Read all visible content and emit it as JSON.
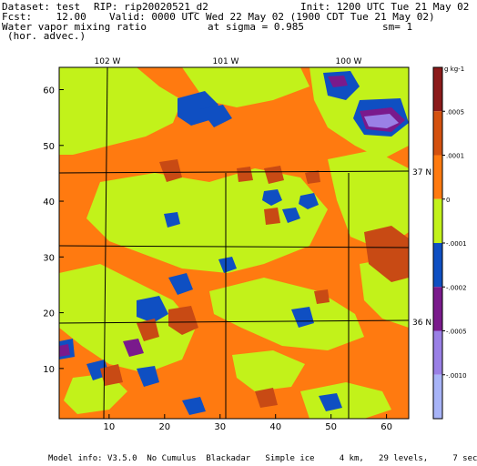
{
  "header": {
    "dataset": "Dataset: test",
    "rip": "RIP: rip20020521_d2",
    "init": "Init: 1200 UTC Tue 21 May 02",
    "fcst": "Fcst:    12.00",
    "valid": "Valid: 0000 UTC Wed 22 May 02 (1900 CDT Tue 21 May 02)",
    "field": "Water vapor mixing ratio",
    "sigma": "at sigma = 0.985",
    "sm": "sm= 1",
    "sub": "(hor. advec.)"
  },
  "footer": "Model info: V3.5.0  No Cumulus  Blackadar   Simple ice     4 km,   29 levels,     7 sec",
  "chart_data": {
    "type": "heatmap",
    "title": "Water vapor mixing ratio",
    "subtitle": "(hor. advec.)",
    "x_ticks": [
      10,
      20,
      30,
      40,
      50,
      60
    ],
    "y_ticks": [
      10,
      20,
      30,
      40,
      50,
      60
    ],
    "xlim": [
      1,
      64
    ],
    "ylim": [
      1,
      64
    ],
    "top_labels": [
      "102 W",
      "101 W",
      "100 W"
    ],
    "right_labels": [
      "37 N",
      "36 N"
    ],
    "colorbar": {
      "unit_label": "g kg-1",
      "labels": [
        ".0005",
        ".0001",
        "0",
        "-.0001",
        "-.0002",
        "-.0005",
        "-.0010"
      ],
      "colors": [
        "#8b1a1a",
        "#d4510f",
        "#ff7a10",
        "#c2f21a",
        "#0f4fc2",
        "#7a1a8c",
        "#9a80e6",
        "#a8b4f8"
      ]
    },
    "grid": true
  },
  "colors": {
    "strong_pos": "#8b1a1a",
    "pos": "#c84a14",
    "orange": "#ff7a10",
    "green": "#c2f21a",
    "blue": "#0f4fc2",
    "purple": "#7a1a8c",
    "lavender": "#9a80e6"
  }
}
